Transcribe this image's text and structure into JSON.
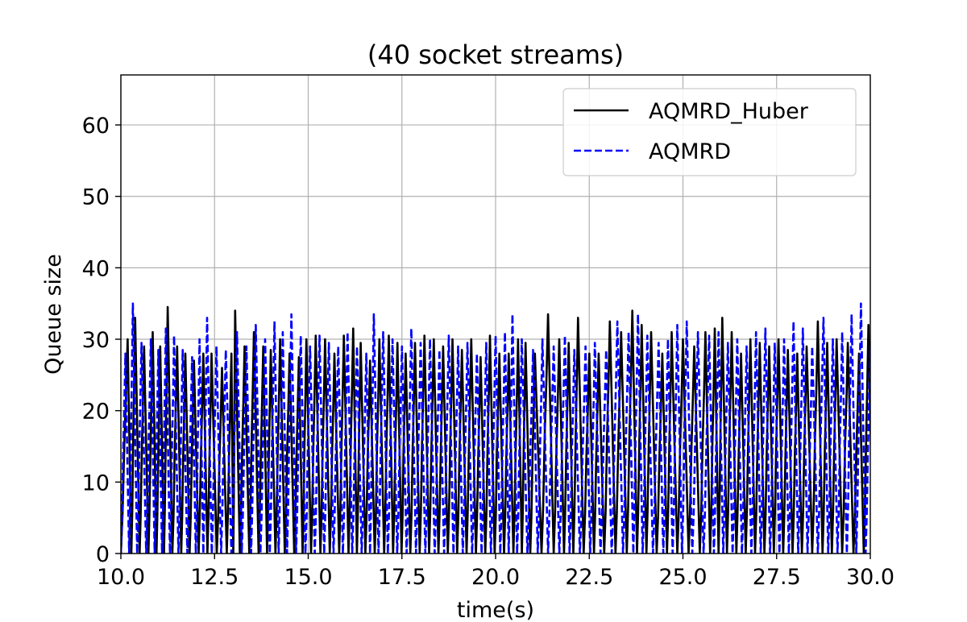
{
  "chart_data": {
    "type": "line",
    "title": "(40 socket streams)",
    "xlabel": "time(s)",
    "ylabel": "Queue size",
    "xlim": [
      10.0,
      30.0
    ],
    "ylim": [
      0,
      67
    ],
    "xticks": [
      "10.0",
      "12.5",
      "15.0",
      "17.5",
      "20.0",
      "22.5",
      "25.0",
      "27.5",
      "30.0"
    ],
    "yticks": [
      "0",
      "10",
      "20",
      "30",
      "40",
      "50",
      "60"
    ],
    "grid": true,
    "legend_position": "top-right",
    "series": [
      {
        "name": "AQMRD_Huber",
        "color": "#000000",
        "style": "solid",
        "peaks": [
          [
            10.18,
            30
          ],
          [
            10.38,
            33
          ],
          [
            10.62,
            29
          ],
          [
            10.85,
            31
          ],
          [
            11.05,
            29
          ],
          [
            11.25,
            34.5
          ],
          [
            11.5,
            29
          ],
          [
            11.72,
            28
          ],
          [
            11.95,
            27
          ],
          [
            12.2,
            28
          ],
          [
            12.42,
            28
          ],
          [
            12.7,
            26
          ],
          [
            12.95,
            28
          ],
          [
            13.05,
            34
          ],
          [
            13.3,
            29
          ],
          [
            13.55,
            31
          ],
          [
            13.8,
            29
          ],
          [
            14.0,
            28.5
          ],
          [
            14.25,
            30
          ],
          [
            14.5,
            28
          ],
          [
            14.75,
            27.5
          ],
          [
            14.95,
            30
          ],
          [
            15.2,
            30.5
          ],
          [
            15.45,
            30
          ],
          [
            15.7,
            28
          ],
          [
            15.95,
            30.5
          ],
          [
            16.2,
            31.5
          ],
          [
            16.4,
            29.5
          ],
          [
            16.65,
            27
          ],
          [
            16.9,
            30
          ],
          [
            17.15,
            30.5
          ],
          [
            17.38,
            29.5
          ],
          [
            17.6,
            28
          ],
          [
            17.85,
            29.5
          ],
          [
            18.1,
            30.5
          ],
          [
            18.35,
            30
          ],
          [
            18.6,
            29
          ],
          [
            18.85,
            30
          ],
          [
            19.1,
            28.5
          ],
          [
            19.35,
            30
          ],
          [
            19.6,
            27.5
          ],
          [
            19.85,
            30.5
          ],
          [
            20.1,
            28
          ],
          [
            20.35,
            28
          ],
          [
            20.6,
            30
          ],
          [
            20.8,
            29.5
          ],
          [
            21.05,
            28
          ],
          [
            21.4,
            33.5
          ],
          [
            21.7,
            30
          ],
          [
            21.95,
            29.5
          ],
          [
            22.2,
            33
          ],
          [
            22.5,
            28
          ],
          [
            22.75,
            28
          ],
          [
            23.05,
            32.5
          ],
          [
            23.35,
            31
          ],
          [
            23.65,
            34
          ],
          [
            23.9,
            32
          ],
          [
            24.15,
            31
          ],
          [
            24.45,
            28
          ],
          [
            24.7,
            31
          ],
          [
            25.0,
            30
          ],
          [
            25.3,
            29
          ],
          [
            25.6,
            31
          ],
          [
            25.85,
            31.5
          ],
          [
            26.05,
            33
          ],
          [
            26.3,
            31
          ],
          [
            26.55,
            28
          ],
          [
            26.8,
            30
          ],
          [
            27.05,
            29.5
          ],
          [
            27.3,
            29
          ],
          [
            27.55,
            30
          ],
          [
            27.8,
            28.5
          ],
          [
            28.05,
            28
          ],
          [
            28.3,
            29
          ],
          [
            28.6,
            32.5
          ],
          [
            28.85,
            29.5
          ],
          [
            29.1,
            30
          ],
          [
            29.4,
            29.5
          ],
          [
            29.7,
            28
          ],
          [
            29.95,
            32
          ]
        ]
      },
      {
        "name": "AQMRD",
        "color": "#0000ff",
        "style": "dashed",
        "peaks": [
          [
            10.12,
            28
          ],
          [
            10.32,
            35
          ],
          [
            10.55,
            29.5
          ],
          [
            10.8,
            30
          ],
          [
            11.0,
            28.5
          ],
          [
            11.2,
            31.5
          ],
          [
            11.42,
            30.5
          ],
          [
            11.65,
            28.5
          ],
          [
            11.9,
            27.5
          ],
          [
            12.1,
            30
          ],
          [
            12.3,
            33
          ],
          [
            12.55,
            29
          ],
          [
            12.8,
            28.5
          ],
          [
            13.1,
            31
          ],
          [
            13.35,
            29
          ],
          [
            13.6,
            32
          ],
          [
            13.85,
            30
          ],
          [
            14.1,
            32.5
          ],
          [
            14.32,
            31
          ],
          [
            14.55,
            33.5
          ],
          [
            14.8,
            30.5
          ],
          [
            15.05,
            29
          ],
          [
            15.3,
            30.5
          ],
          [
            15.55,
            29.5
          ],
          [
            15.8,
            29
          ],
          [
            16.05,
            31
          ],
          [
            16.3,
            29
          ],
          [
            16.55,
            28
          ],
          [
            16.75,
            33.5
          ],
          [
            17.0,
            31
          ],
          [
            17.25,
            30
          ],
          [
            17.5,
            29
          ],
          [
            17.75,
            31.5
          ],
          [
            18.0,
            29.5
          ],
          [
            18.25,
            30
          ],
          [
            18.5,
            28.5
          ],
          [
            18.75,
            30.5
          ],
          [
            19.0,
            29
          ],
          [
            19.25,
            29.5
          ],
          [
            19.5,
            28
          ],
          [
            19.75,
            29.5
          ],
          [
            20.0,
            30.5
          ],
          [
            20.25,
            31
          ],
          [
            20.45,
            33.5
          ],
          [
            20.7,
            30
          ],
          [
            21.0,
            28.5
          ],
          [
            21.25,
            30
          ],
          [
            21.55,
            29
          ],
          [
            21.85,
            30.5
          ],
          [
            22.1,
            28.5
          ],
          [
            22.4,
            29
          ],
          [
            22.65,
            29.5
          ],
          [
            22.95,
            28.5
          ],
          [
            23.25,
            32.5
          ],
          [
            23.55,
            31
          ],
          [
            23.8,
            33.5
          ],
          [
            24.05,
            30.5
          ],
          [
            24.35,
            29.5
          ],
          [
            24.6,
            30
          ],
          [
            24.85,
            32
          ],
          [
            25.1,
            32.5
          ],
          [
            25.4,
            31
          ],
          [
            25.7,
            30.5
          ],
          [
            25.95,
            31
          ],
          [
            26.2,
            29.5
          ],
          [
            26.45,
            30
          ],
          [
            26.7,
            29
          ],
          [
            26.95,
            31
          ],
          [
            27.2,
            31.5
          ],
          [
            27.45,
            29.5
          ],
          [
            27.7,
            30
          ],
          [
            27.95,
            32.5
          ],
          [
            28.2,
            31.5
          ],
          [
            28.45,
            29
          ],
          [
            28.75,
            33
          ],
          [
            29.0,
            30
          ],
          [
            29.25,
            31
          ],
          [
            29.5,
            33.5
          ],
          [
            29.75,
            35
          ],
          [
            30.0,
            29
          ]
        ]
      }
    ]
  }
}
